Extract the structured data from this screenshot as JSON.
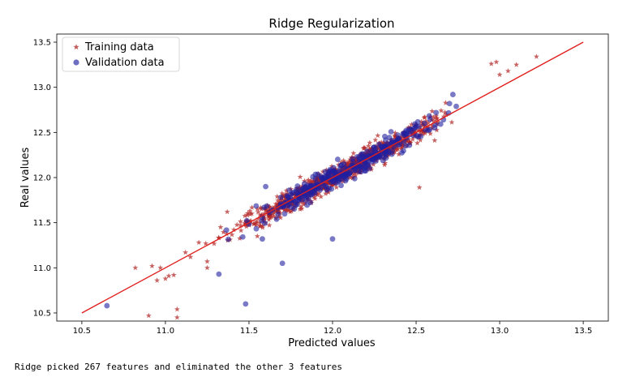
{
  "chart_data": {
    "type": "scatter",
    "title": "Ridge Regularization",
    "xlabel": "Predicted values",
    "ylabel": "Real values",
    "xlim": [
      10.35,
      13.65
    ],
    "ylim": [
      10.41,
      13.59
    ],
    "xticks": [
      "10.5",
      "11.0",
      "11.5",
      "12.0",
      "12.5",
      "13.0",
      "13.5"
    ],
    "yticks": [
      "10.5",
      "11.0",
      "11.5",
      "12.0",
      "12.5",
      "13.0",
      "13.5"
    ],
    "grid": false,
    "legend_position": "top-left",
    "series": [
      {
        "name": "Training data",
        "marker": "star",
        "color": "#b22222",
        "cluster": {
          "x_min": 11.2,
          "x_max": 12.85,
          "spread": 0.06,
          "count": 900
        },
        "points": [
          [
            10.82,
            11.0
          ],
          [
            10.92,
            11.02
          ],
          [
            10.97,
            11.0
          ],
          [
            11.0,
            10.88
          ],
          [
            11.02,
            10.91
          ],
          [
            11.05,
            10.92
          ],
          [
            10.95,
            10.86
          ],
          [
            10.9,
            10.47
          ],
          [
            11.07,
            10.54
          ],
          [
            11.07,
            10.45
          ],
          [
            11.12,
            11.17
          ],
          [
            11.15,
            11.12
          ],
          [
            11.2,
            11.28
          ],
          [
            11.25,
            11.07
          ],
          [
            11.25,
            11.0
          ],
          [
            11.33,
            11.45
          ],
          [
            11.37,
            11.62
          ],
          [
            11.45,
            11.47
          ],
          [
            11.55,
            11.35
          ],
          [
            12.52,
            11.89
          ],
          [
            12.95,
            13.26
          ],
          [
            12.98,
            13.28
          ],
          [
            13.0,
            13.14
          ],
          [
            13.05,
            13.18
          ],
          [
            13.1,
            13.25
          ],
          [
            13.22,
            13.34
          ]
        ]
      },
      {
        "name": "Validation data",
        "marker": "circle",
        "color": "#1f1fa0",
        "cluster": {
          "x_min": 11.3,
          "x_max": 12.85,
          "spread": 0.06,
          "count": 330
        },
        "points": [
          [
            10.65,
            10.58
          ],
          [
            11.32,
            10.93
          ],
          [
            11.48,
            10.6
          ],
          [
            11.58,
            11.32
          ],
          [
            11.7,
            11.05
          ],
          [
            11.6,
            11.9
          ],
          [
            12.0,
            11.32
          ],
          [
            12.55,
            12.6
          ],
          [
            12.7,
            12.82
          ],
          [
            12.72,
            12.92
          ],
          [
            12.62,
            12.72
          ]
        ]
      },
      {
        "name": "",
        "type": "line",
        "color": "#e0201f",
        "x": [
          10.5,
          13.5
        ],
        "y": [
          10.5,
          13.5
        ]
      }
    ]
  },
  "caption": "Ridge picked 267 features and eliminated the other 3 features"
}
